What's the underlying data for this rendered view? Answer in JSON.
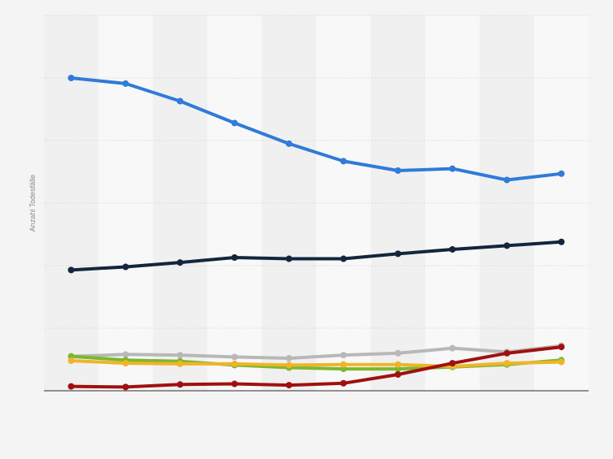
{
  "chart_data": {
    "type": "line",
    "title": "",
    "xlabel": "",
    "ylabel": "Anzahl Todesfälle",
    "x": [
      1,
      2,
      3,
      4,
      5,
      6,
      7,
      8,
      9,
      10
    ],
    "ylim": [
      0,
      600
    ],
    "grid": true,
    "legend": "none",
    "series": [
      {
        "color": "#2f7bd8",
        "values": [
          500,
          491,
          463,
          428,
          395,
          367,
          352,
          355,
          337,
          347
        ]
      },
      {
        "color": "#14253d",
        "values": [
          193,
          198,
          205,
          213,
          211,
          211,
          219,
          226,
          232,
          238
        ]
      },
      {
        "color": "#b8b8b8",
        "values": [
          55,
          58,
          57,
          54,
          52,
          57,
          60,
          68,
          62,
          72
        ]
      },
      {
        "color": "#7ab82e",
        "values": [
          55,
          49,
          47,
          41,
          37,
          35,
          35,
          38,
          42,
          49
        ]
      },
      {
        "color": "#f0b429",
        "values": [
          48,
          44,
          43,
          43,
          41,
          42,
          42,
          39,
          44,
          46
        ]
      },
      {
        "color": "#a01010",
        "values": [
          7,
          6,
          10,
          11,
          9,
          12,
          26,
          44,
          60,
          70
        ]
      }
    ]
  }
}
